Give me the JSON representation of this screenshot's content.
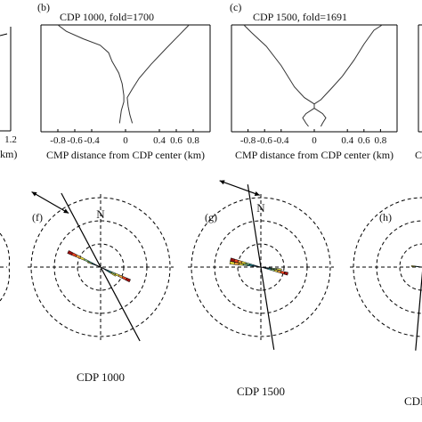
{
  "panels_top": [
    {
      "id": "a",
      "tick_labels": [
        "1.2"
      ],
      "xlabel_fragment": "km)"
    },
    {
      "id": "b",
      "label": "(b)",
      "title": "CDP 1000, fold=1700",
      "type": "line",
      "xlabel": "CMP distance from CDP center (km)",
      "xticks": [
        "-0.8",
        "-0.6",
        "-0.4",
        "0",
        "0.4",
        "0.6",
        "0.8"
      ],
      "xlim": [
        -1.0,
        1.0
      ],
      "series": [
        {
          "x": [
            -0.8,
            -0.7,
            -0.5,
            -0.3,
            -0.2,
            -0.16,
            -0.08,
            -0.04,
            -0.02,
            -0.02,
            -0.05,
            -0.07
          ],
          "y": [
            0.0,
            0.06,
            0.13,
            0.19,
            0.26,
            0.34,
            0.45,
            0.55,
            0.66,
            0.72,
            0.8,
            0.92
          ]
        },
        {
          "x": [
            0.75,
            0.64,
            0.48,
            0.3,
            0.16,
            0.08,
            0.02,
            0.03,
            0.05,
            0.08
          ],
          "y": [
            0.0,
            0.09,
            0.22,
            0.37,
            0.5,
            0.6,
            0.68,
            0.76,
            0.84,
            0.92
          ]
        }
      ]
    },
    {
      "id": "c",
      "label": "(c)",
      "title": "CDP 1500, fold=1691",
      "type": "line",
      "xlabel": "CMP distance from CDP center (km)",
      "xticks": [
        "-0.8",
        "-0.6",
        "-0.4",
        "0",
        "0.4",
        "0.6",
        "0.8"
      ],
      "xlim": [
        -1.0,
        1.0
      ],
      "series": [
        {
          "x": [
            -0.85,
            -0.76,
            -0.58,
            -0.4,
            -0.24,
            -0.12,
            0.0,
            0.0,
            -0.1,
            -0.14,
            -0.1,
            -0.07
          ],
          "y": [
            0.0,
            0.07,
            0.2,
            0.38,
            0.58,
            0.68,
            0.74,
            0.78,
            0.83,
            0.87,
            0.92,
            0.95
          ]
        },
        {
          "x": [
            0.82,
            0.72,
            0.6,
            0.48,
            0.34,
            0.2,
            0.08,
            0.0,
            0.0,
            0.1,
            0.14,
            0.1,
            0.08
          ],
          "y": [
            0.0,
            0.05,
            0.18,
            0.33,
            0.48,
            0.6,
            0.7,
            0.74,
            0.78,
            0.83,
            0.87,
            0.92,
            0.95
          ]
        }
      ]
    }
  ],
  "panels_bottom": [
    {
      "id": "f",
      "label": "(f)",
      "caption": "CDP 1000",
      "north_label": "N",
      "type": "rose",
      "line_azimuth_deg": 152,
      "arrow_azimuth_deg": 300,
      "petals": [
        {
          "azimuth_deg": 295,
          "width_deg": 5,
          "rings": 1.55,
          "colors": [
            "#1f3fbf",
            "#2a9fd8",
            "#3ec9d6",
            "#8fd08a",
            "#f2e640",
            "#f2a23a",
            "#e8411f",
            "#9c1010"
          ]
        },
        {
          "azimuth_deg": 291,
          "width_deg": 4,
          "rings": 0.6,
          "colors": [
            "#1f3fbf",
            "#3ec9d6",
            "#f2e640"
          ]
        },
        {
          "azimuth_deg": 115,
          "width_deg": 5,
          "rings": 1.4,
          "colors": [
            "#1f3fbf",
            "#2a9fd8",
            "#3ec9d6",
            "#8fd08a",
            "#f2e640",
            "#f2a23a",
            "#e8411f",
            "#9c1010"
          ]
        },
        {
          "azimuth_deg": 120,
          "width_deg": 4,
          "rings": 0.75,
          "colors": [
            "#1f3fbf",
            "#3ec9d6",
            "#f2e640"
          ]
        }
      ]
    },
    {
      "id": "g",
      "label": "(g)",
      "caption": "CDP 1500",
      "north_label": "N",
      "type": "rose",
      "line_azimuth_deg": 171,
      "arrow_azimuth_deg": 290,
      "petals": [
        {
          "azimuth_deg": 284,
          "width_deg": 6,
          "rings": 1.35,
          "colors": [
            "#1f3fbf",
            "#2a9fd8",
            "#3ec9d6",
            "#8fd08a",
            "#f2e640",
            "#f2a23a",
            "#e8411f",
            "#9c1010"
          ]
        },
        {
          "azimuth_deg": 278,
          "width_deg": 5,
          "rings": 1.35,
          "colors": [
            "#1f3fbf",
            "#2a9fd8",
            "#3ec9d6",
            "#8fd08a",
            "#f2e640",
            "#f2a23a",
            "#f2e640"
          ]
        },
        {
          "azimuth_deg": 104,
          "width_deg": 6,
          "rings": 1.2,
          "colors": [
            "#1f3fbf",
            "#2a9fd8",
            "#3ec9d6",
            "#8fd08a",
            "#f2e640",
            "#f2a23a",
            "#e8411f",
            "#9c1010"
          ]
        },
        {
          "azimuth_deg": 97,
          "width_deg": 4,
          "rings": 0.9,
          "colors": [
            "#1f3fbf",
            "#3ec9d6",
            "#8fd08a",
            "#f2e640"
          ]
        }
      ]
    },
    {
      "id": "h",
      "label": "(h)",
      "caption_fragment": "CDI",
      "type": "rose",
      "line_azimuth_deg": 5,
      "petals": [
        {
          "azimuth_deg": 275,
          "width_deg": 5,
          "rings": 0.5,
          "colors": [
            "#1f3fbf",
            "#3ec9d6",
            "#f2e640"
          ]
        },
        {
          "azimuth_deg": 95,
          "width_deg": 4,
          "rings": 0.2,
          "colors": [
            "#1f3fbf",
            "#3ec9d6"
          ]
        }
      ]
    }
  ]
}
